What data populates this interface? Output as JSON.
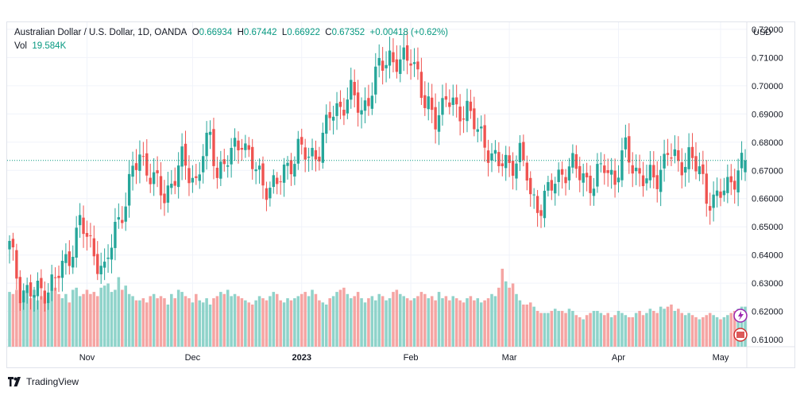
{
  "legend": {
    "symbol": "Australian Dollar / U.S. Dollar, 1D, OANDA",
    "o_label": "O",
    "o_value": "0.66934",
    "h_label": "H",
    "h_value": "0.67442",
    "l_label": "L",
    "l_value": "0.66922",
    "c_label": "C",
    "c_value": "0.67352",
    "change": "+0.00418 (+0.62%)",
    "vol_label": "Vol",
    "vol_value": "19.584K"
  },
  "brand": {
    "name": "TradingView"
  },
  "colors": {
    "up": "#26a69a",
    "down": "#ef5350",
    "up_vol": "#8fd3ca",
    "down_vol": "#f5a5a3",
    "accent": "#089981"
  },
  "chart_data": {
    "type": "candlestick",
    "currency_label": "USD",
    "ylim": [
      0.6075,
      0.7225
    ],
    "y_ticks": [
      "0.72000",
      "0.71000",
      "0.70000",
      "0.69000",
      "0.68000",
      "0.67000",
      "0.66000",
      "0.65000",
      "0.64000",
      "0.63000",
      "0.62000",
      "0.61000"
    ],
    "y_tick_values": [
      0.72,
      0.71,
      0.7,
      0.69,
      0.68,
      0.67,
      0.66,
      0.65,
      0.64,
      0.63,
      0.62,
      0.61
    ],
    "x_ticks": [
      {
        "label": "Nov",
        "index": 22,
        "bold": false
      },
      {
        "label": "Dec",
        "index": 52,
        "bold": false
      },
      {
        "label": "2023",
        "index": 83,
        "bold": true
      },
      {
        "label": "Feb",
        "index": 114,
        "bold": false
      },
      {
        "label": "Mar",
        "index": 142,
        "bold": false
      },
      {
        "label": "Apr",
        "index": 173,
        "bold": false
      },
      {
        "label": "May",
        "index": 202,
        "bold": false
      }
    ],
    "last_close": 0.67352,
    "anchors": [
      [
        0,
        0.643
      ],
      [
        3,
        0.628
      ],
      [
        7,
        0.626
      ],
      [
        10,
        0.628
      ],
      [
        13,
        0.631
      ],
      [
        17,
        0.64
      ],
      [
        20,
        0.651
      ],
      [
        23,
        0.644
      ],
      [
        27,
        0.633
      ],
      [
        30,
        0.65
      ],
      [
        33,
        0.659
      ],
      [
        35,
        0.669
      ],
      [
        37,
        0.676
      ],
      [
        41,
        0.666
      ],
      [
        44,
        0.661
      ],
      [
        49,
        0.673
      ],
      [
        53,
        0.666
      ],
      [
        55,
        0.676
      ],
      [
        57,
        0.681
      ],
      [
        59,
        0.67
      ],
      [
        63,
        0.675
      ],
      [
        66,
        0.682
      ],
      [
        69,
        0.672
      ],
      [
        72,
        0.665
      ],
      [
        76,
        0.665
      ],
      [
        79,
        0.671
      ],
      [
        82,
        0.678
      ],
      [
        85,
        0.674
      ],
      [
        88,
        0.678
      ],
      [
        91,
        0.689
      ],
      [
        94,
        0.693
      ],
      [
        97,
        0.697
      ],
      [
        100,
        0.691
      ],
      [
        103,
        0.699
      ],
      [
        105,
        0.706
      ],
      [
        108,
        0.711
      ],
      [
        111,
        0.707
      ],
      [
        114,
        0.711
      ],
      [
        116,
        0.705
      ],
      [
        118,
        0.692
      ],
      [
        121,
        0.689
      ],
      [
        124,
        0.696
      ],
      [
        127,
        0.69
      ],
      [
        130,
        0.693
      ],
      [
        133,
        0.683
      ],
      [
        136,
        0.678
      ],
      [
        139,
        0.672
      ],
      [
        142,
        0.672
      ],
      [
        145,
        0.676
      ],
      [
        147,
        0.668
      ],
      [
        148,
        0.66
      ],
      [
        151,
        0.658
      ],
      [
        154,
        0.664
      ],
      [
        157,
        0.67
      ],
      [
        160,
        0.671
      ],
      [
        163,
        0.668
      ],
      [
        166,
        0.665
      ],
      [
        169,
        0.672
      ],
      [
        172,
        0.667
      ],
      [
        175,
        0.677
      ],
      [
        178,
        0.67
      ],
      [
        181,
        0.666
      ],
      [
        184,
        0.668
      ],
      [
        187,
        0.677
      ],
      [
        190,
        0.671
      ],
      [
        193,
        0.676
      ],
      [
        196,
        0.669
      ],
      [
        198,
        0.661
      ],
      [
        201,
        0.66
      ],
      [
        204,
        0.664
      ],
      [
        207,
        0.671
      ],
      [
        209,
        0.6735
      ]
    ],
    "volume_max": 40,
    "volume_bars": [
      26,
      25,
      27,
      21,
      24,
      26,
      23,
      27,
      22,
      24,
      23,
      22,
      27,
      28,
      25,
      23,
      25,
      21,
      27,
      28,
      24,
      25,
      27,
      25,
      26,
      24,
      28,
      29,
      30,
      26,
      27,
      33,
      27,
      29,
      25,
      24,
      22,
      22,
      23,
      21,
      24,
      25,
      23,
      24,
      23,
      20,
      25,
      23,
      27,
      26,
      24,
      23,
      21,
      25,
      22,
      21,
      23,
      20,
      23,
      24,
      26,
      25,
      27,
      24,
      25,
      24,
      23,
      22,
      21,
      20,
      22,
      24,
      23,
      22,
      24,
      26,
      25,
      22,
      21,
      23,
      22,
      23,
      24,
      25,
      26,
      24,
      27,
      25,
      22,
      21,
      20,
      23,
      24,
      26,
      27,
      28,
      25,
      23,
      24,
      26,
      23,
      21,
      23,
      24,
      22,
      25,
      24,
      22,
      23,
      26,
      27,
      25,
      24,
      23,
      22,
      23,
      24,
      26,
      25,
      23,
      24,
      22,
      26,
      23,
      24,
      22,
      24,
      23,
      22,
      21,
      23,
      24,
      22,
      23,
      21,
      22,
      23,
      25,
      24,
      28,
      37,
      31,
      28,
      30,
      25,
      22,
      20,
      20,
      21,
      19,
      17,
      16,
      16,
      16,
      17,
      18,
      17,
      17,
      16,
      18,
      17,
      15,
      14,
      13,
      15,
      16,
      17,
      17,
      16,
      15,
      16,
      14,
      15,
      17,
      16,
      15,
      14,
      14,
      16,
      17,
      15,
      16,
      18,
      17,
      16,
      19,
      18,
      19,
      20,
      17,
      18,
      16,
      15,
      16,
      15,
      14,
      13,
      14,
      15,
      16,
      15,
      14,
      13,
      14,
      15,
      16,
      17,
      18,
      19,
      19
    ]
  }
}
